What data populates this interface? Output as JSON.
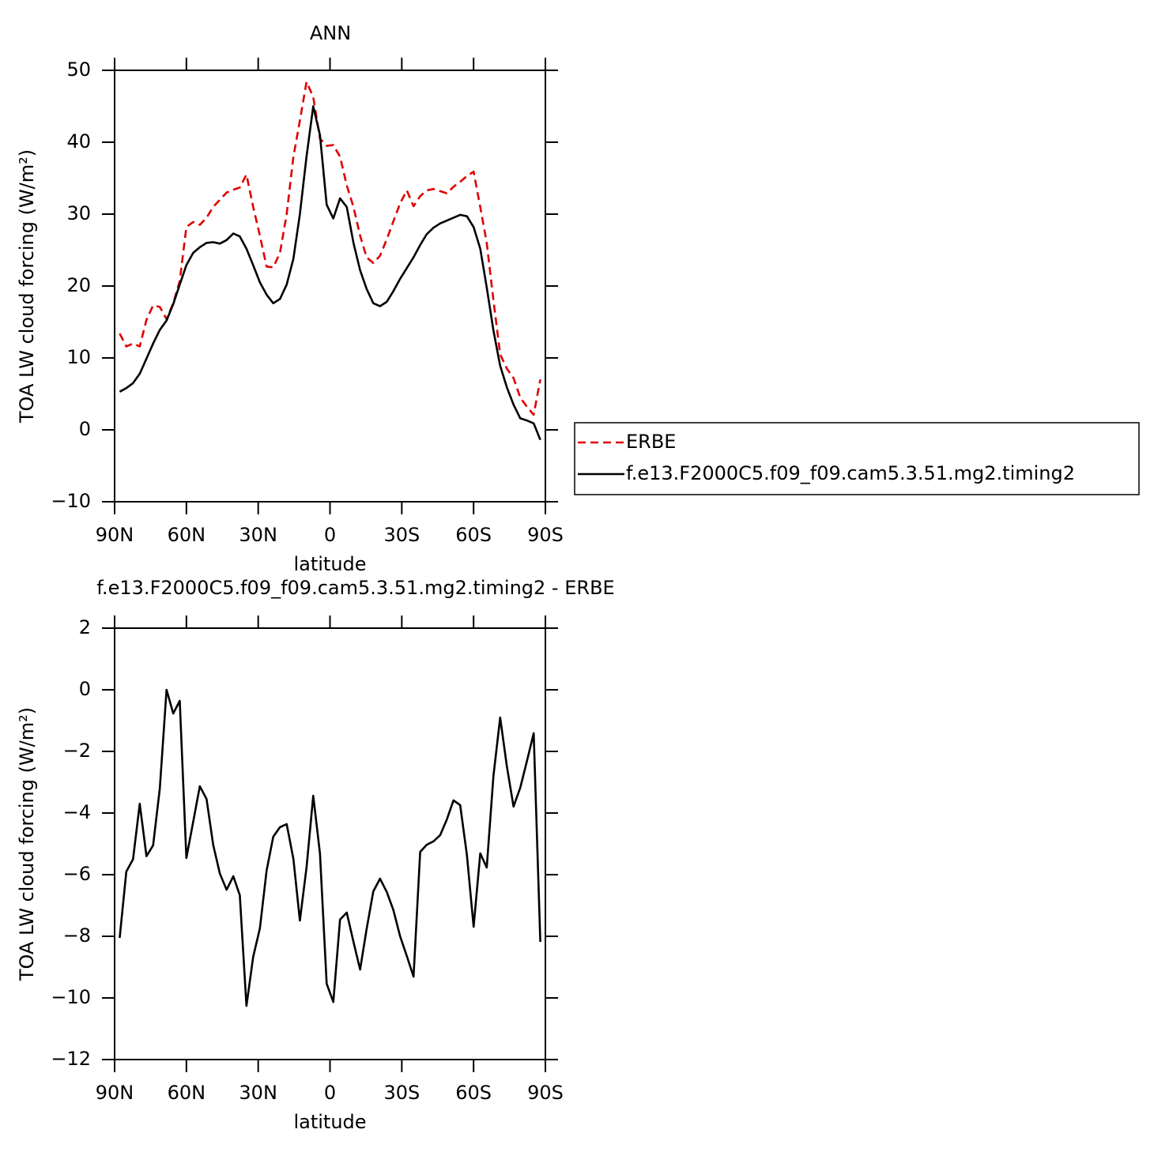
{
  "chart_data": [
    {
      "type": "line",
      "title": "ANN",
      "xlabel": "latitude",
      "ylabel": "TOA LW cloud forcing (W/m²)",
      "x": [
        87.9,
        85.1,
        82.3,
        79.5,
        76.7,
        73.9,
        71.1,
        68.3,
        65.5,
        62.8,
        60.0,
        57.2,
        54.4,
        51.6,
        48.8,
        46.0,
        43.2,
        40.4,
        37.7,
        34.9,
        32.1,
        29.3,
        26.5,
        23.7,
        20.9,
        18.1,
        15.3,
        12.6,
        9.8,
        7.0,
        4.2,
        1.4,
        -1.4,
        -4.2,
        -7.0,
        -9.8,
        -12.6,
        -15.3,
        -18.1,
        -20.9,
        -23.7,
        -26.5,
        -29.3,
        -32.1,
        -34.9,
        -37.7,
        -40.4,
        -43.2,
        -46.0,
        -48.8,
        -51.6,
        -54.4,
        -57.2,
        -60.0,
        -62.8,
        -65.5,
        -68.3,
        -71.1,
        -73.9,
        -76.7,
        -79.5,
        -82.3,
        -85.1,
        -87.9
      ],
      "series": [
        {
          "name": "ERBE",
          "color": "#e00000",
          "style": "dashed",
          "values": [
            13.4,
            11.6,
            12,
            11.6,
            15.3,
            17.3,
            17.1,
            15.4,
            17.6,
            20.7,
            28.2,
            28.9,
            28.5,
            29.5,
            31,
            32,
            33,
            33.4,
            33.7,
            35.5,
            31,
            27,
            22.7,
            22.6,
            24.6,
            30,
            38,
            43,
            48.4,
            46.3,
            40.5,
            39.5,
            39.6,
            38,
            34,
            31,
            27,
            24,
            23.2,
            24.2,
            26.5,
            29,
            31.5,
            33.3,
            31.1,
            32.5,
            33.3,
            33.5,
            33.2,
            32.9,
            33.8,
            34.5,
            35.3,
            35.9,
            31,
            26,
            18,
            10.5,
            8.5,
            7.2,
            4.5,
            3.2,
            2.1,
            7
          ]
        },
        {
          "name": "f.e13.F2000C5.f09_f09.cam5.3.51.mg2.timing2",
          "color": "#000000",
          "style": "solid",
          "values": [
            5.3,
            5.8,
            6.5,
            7.8,
            9.9,
            12,
            13.9,
            15.2,
            17.5,
            20.2,
            22.9,
            24.6,
            25.4,
            26,
            26.1,
            25.9,
            26.4,
            27.3,
            26.9,
            25.2,
            22.9,
            20.5,
            18.8,
            17.6,
            18.2,
            20.2,
            23.8,
            30,
            38,
            45,
            41,
            31.3,
            29.4,
            32.2,
            31,
            26,
            22.2,
            19.6,
            17.6,
            17.2,
            17.8,
            19.3,
            21,
            22.5,
            24,
            25.7,
            27.2,
            28.1,
            28.7,
            29.1,
            29.5,
            29.9,
            29.7,
            28.2,
            25.2,
            19.8,
            13.8,
            8.9,
            5.9,
            3.5,
            1.6,
            1.3,
            0.9,
            -1.4
          ]
        }
      ],
      "xlim": [
        90,
        -90
      ],
      "xticks": [
        {
          "value": 90,
          "label": "90N"
        },
        {
          "value": 60,
          "label": "60N"
        },
        {
          "value": 30,
          "label": "30N"
        },
        0,
        {
          "value": -30,
          "label": "30S"
        },
        {
          "value": -60,
          "label": "60S"
        },
        {
          "value": -90,
          "label": "90S"
        }
      ],
      "ylim": [
        -10,
        50
      ],
      "yticks": [
        {
          "value": -10,
          "label": "−10"
        },
        0,
        10,
        20,
        30,
        40,
        50
      ],
      "legend": "right"
    },
    {
      "type": "line",
      "title": "f.e13.F2000C5.f09_f09.cam5.3.51.mg2.timing2 - ERBE",
      "xlabel": "latitude",
      "ylabel": "TOA LW cloud forcing (W/m²)",
      "x": [
        87.9,
        85.1,
        82.3,
        79.5,
        76.7,
        73.9,
        71.1,
        68.3,
        65.5,
        62.8,
        60.0,
        57.2,
        54.4,
        51.6,
        48.8,
        46.0,
        43.2,
        40.4,
        37.7,
        34.9,
        32.1,
        29.3,
        26.5,
        23.7,
        20.9,
        18.1,
        15.3,
        12.6,
        9.8,
        7.0,
        4.2,
        1.4,
        -1.4,
        -4.2,
        -7.0,
        -9.8,
        -12.6,
        -15.3,
        -18.1,
        -20.9,
        -23.7,
        -26.5,
        -29.3,
        -32.1,
        -34.9,
        -37.7,
        -40.4,
        -43.2,
        -46.0,
        -48.8,
        -51.6,
        -54.4,
        -57.2,
        -60.0,
        -62.8,
        -65.5,
        -68.3,
        -71.1,
        -73.9,
        -76.7,
        -79.5,
        -82.3,
        -85.1,
        -87.9
      ],
      "values": [
        -8.05,
        -5.9,
        -5.5,
        -3.7,
        -5.4,
        -5.05,
        -3.2,
        0,
        -0.77,
        -0.36,
        -5.46,
        -4.3,
        -3.13,
        -3.54,
        -5.03,
        -5.97,
        -6.49,
        -6.05,
        -6.67,
        -10.26,
        -8.67,
        -7.74,
        -5.87,
        -4.77,
        -4.46,
        -4.36,
        -5.49,
        -7.49,
        -5.77,
        -3.44,
        -5.31,
        -9.54,
        -10.13,
        -7.46,
        -7.23,
        -8.18,
        -9.08,
        -7.77,
        -6.54,
        -6.13,
        -6.56,
        -7.15,
        -8,
        -8.64,
        -9.31,
        -5.26,
        -5.03,
        -4.92,
        -4.72,
        -4.21,
        -3.59,
        -3.74,
        -5.36,
        -7.69,
        -5.31,
        -5.77,
        -2.79,
        -0.9,
        -2.49,
        -3.79,
        -3.18,
        -2.31,
        -1.41,
        -8.18
      ],
      "color": "#000000",
      "xlim": [
        90,
        -90
      ],
      "xticks": [
        {
          "value": 90,
          "label": "90N"
        },
        {
          "value": 60,
          "label": "60N"
        },
        {
          "value": 30,
          "label": "30N"
        },
        0,
        {
          "value": -30,
          "label": "30S"
        },
        {
          "value": -60,
          "label": "60S"
        },
        {
          "value": -90,
          "label": "90S"
        }
      ],
      "ylim": [
        -12,
        2
      ],
      "yticks": [
        {
          "value": -12,
          "label": "−12"
        },
        {
          "value": -10,
          "label": "−10"
        },
        {
          "value": -8,
          "label": "−8"
        },
        {
          "value": -6,
          "label": "−6"
        },
        {
          "value": -4,
          "label": "−4"
        },
        {
          "value": -2,
          "label": "−2"
        },
        0,
        2
      ]
    }
  ]
}
